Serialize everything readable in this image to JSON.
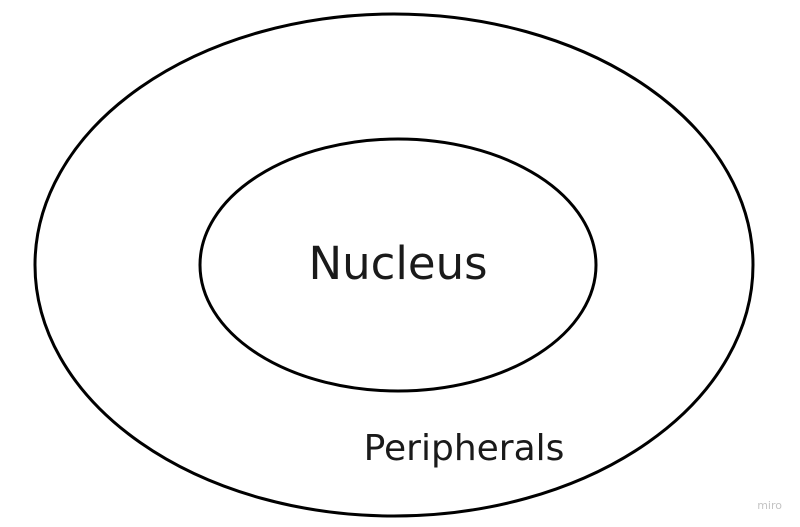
{
  "diagram": {
    "inner_label": "Nucleus",
    "outer_label": "Peripherals",
    "stroke_color": "#000000",
    "text_color": "#1a1a1a"
  },
  "watermark": "miro"
}
